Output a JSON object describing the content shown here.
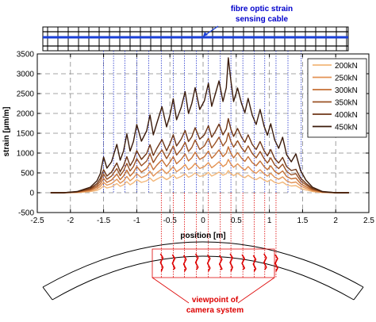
{
  "annotations": {
    "cable_label_line1": "fibre optic strain",
    "cable_label_line2": "sensing cable",
    "camera_label_line1": "viewpoint of",
    "camera_label_line2": "camera system"
  },
  "colors": {
    "cable": "#1a3fd6",
    "guide_blue": "#2233cc",
    "guide_red": "#dd0000",
    "crack": "#dd0000"
  },
  "chart_data": {
    "type": "line",
    "title": "",
    "xlabel": "position [m]",
    "ylabel": "strain [µm/m]",
    "xlim": [
      -2.5,
      2.5
    ],
    "ylim": [
      -500,
      3500
    ],
    "xticks": [
      -2.5,
      -2,
      -1.5,
      -1,
      -0.5,
      0,
      0.5,
      1,
      1.5,
      2,
      2.5
    ],
    "yticks": [
      -500,
      0,
      500,
      1000,
      1500,
      2000,
      2500,
      3000,
      3500
    ],
    "grid": true,
    "legend_position": "top-right",
    "x": [
      -2.3,
      -2.1,
      -1.9,
      -1.7,
      -1.6,
      -1.55,
      -1.5,
      -1.45,
      -1.38,
      -1.3,
      -1.25,
      -1.2,
      -1.15,
      -1.1,
      -1.05,
      -1.0,
      -0.93,
      -0.85,
      -0.8,
      -0.75,
      -0.7,
      -0.62,
      -0.55,
      -0.5,
      -0.45,
      -0.4,
      -0.33,
      -0.27,
      -0.22,
      -0.17,
      -0.12,
      -0.05,
      0.02,
      0.08,
      0.13,
      0.18,
      0.24,
      0.3,
      0.35,
      0.38,
      0.42,
      0.46,
      0.52,
      0.58,
      0.63,
      0.68,
      0.74,
      0.8,
      0.86,
      0.92,
      0.97,
      1.02,
      1.08,
      1.14,
      1.2,
      1.26,
      1.33,
      1.4,
      1.47,
      1.55,
      1.65,
      1.8,
      2.0,
      2.2
    ],
    "series": [
      {
        "name": "200kN",
        "color": "#f2b77a",
        "values": [
          0,
          0,
          5,
          30,
          60,
          100,
          170,
          120,
          150,
          230,
          160,
          200,
          280,
          200,
          250,
          330,
          260,
          300,
          370,
          290,
          340,
          410,
          330,
          380,
          450,
          360,
          410,
          480,
          390,
          430,
          500,
          410,
          440,
          510,
          420,
          460,
          520,
          440,
          480,
          560,
          480,
          430,
          490,
          420,
          380,
          440,
          370,
          330,
          390,
          320,
          280,
          330,
          260,
          230,
          270,
          200,
          170,
          180,
          110,
          70,
          30,
          5,
          0,
          0
        ]
      },
      {
        "name": "250kN",
        "color": "#e39355",
        "values": [
          0,
          0,
          10,
          50,
          100,
          160,
          260,
          190,
          230,
          340,
          240,
          300,
          410,
          300,
          370,
          480,
          380,
          440,
          540,
          420,
          500,
          600,
          480,
          560,
          660,
          530,
          610,
          710,
          580,
          640,
          740,
          610,
          660,
          760,
          630,
          690,
          780,
          660,
          720,
          840,
          720,
          640,
          730,
          630,
          570,
          660,
          550,
          490,
          580,
          480,
          420,
          490,
          390,
          340,
          400,
          300,
          250,
          270,
          170,
          110,
          50,
          10,
          0,
          0
        ]
      },
      {
        "name": "300kN",
        "color": "#c46f35",
        "values": [
          0,
          0,
          15,
          70,
          140,
          220,
          360,
          260,
          320,
          470,
          330,
          420,
          570,
          420,
          510,
          660,
          520,
          610,
          750,
          580,
          690,
          830,
          660,
          770,
          910,
          730,
          840,
          980,
          800,
          880,
          1020,
          840,
          910,
          1050,
          870,
          950,
          1080,
          910,
          1000,
          1160,
          990,
          880,
          1010,
          870,
          790,
          910,
          760,
          680,
          800,
          660,
          580,
          680,
          540,
          470,
          550,
          410,
          350,
          370,
          230,
          150,
          70,
          15,
          0,
          0
        ]
      },
      {
        "name": "350kN",
        "color": "#9a5124",
        "values": [
          0,
          0,
          20,
          90,
          180,
          290,
          470,
          340,
          420,
          610,
          430,
          550,
          740,
          550,
          660,
          860,
          680,
          800,
          980,
          760,
          900,
          1080,
          860,
          1000,
          1180,
          950,
          1090,
          1270,
          1040,
          1140,
          1330,
          1090,
          1180,
          1370,
          1130,
          1240,
          1400,
          1180,
          1300,
          1510,
          1290,
          1150,
          1310,
          1130,
          1030,
          1180,
          990,
          880,
          1040,
          860,
          750,
          880,
          700,
          610,
          720,
          540,
          450,
          480,
          300,
          200,
          90,
          20,
          0,
          0
        ]
      },
      {
        "name": "400kN",
        "color": "#6e3617",
        "values": [
          0,
          0,
          25,
          110,
          230,
          360,
          580,
          420,
          520,
          750,
          530,
          680,
          910,
          680,
          820,
          1060,
          840,
          990,
          1210,
          940,
          1110,
          1340,
          1060,
          1240,
          1460,
          1180,
          1350,
          1570,
          1290,
          1410,
          1640,
          1350,
          1460,
          1690,
          1400,
          1530,
          1730,
          1460,
          1610,
          1870,
          1600,
          1420,
          1620,
          1400,
          1270,
          1460,
          1220,
          1090,
          1290,
          1060,
          930,
          1090,
          860,
          750,
          890,
          660,
          560,
          590,
          370,
          240,
          110,
          25,
          0,
          0
        ]
      },
      {
        "name": "450kN",
        "color": "#3a1a0a",
        "values": [
          0,
          0,
          30,
          140,
          300,
          480,
          900,
          620,
          780,
          1220,
          820,
          1050,
          1480,
          1050,
          1290,
          1720,
          1300,
          1560,
          1960,
          1460,
          1740,
          2170,
          1660,
          1950,
          2370,
          1840,
          2150,
          2550,
          2000,
          2250,
          2650,
          2100,
          2320,
          2760,
          2180,
          2460,
          2820,
          2300,
          2650,
          3400,
          2820,
          2300,
          2640,
          2250,
          2020,
          2380,
          1960,
          1720,
          2100,
          1680,
          1450,
          1740,
          1330,
          1120,
          1400,
          960,
          780,
          980,
          560,
          320,
          140,
          30,
          0,
          0
        ]
      }
    ],
    "guide_blue_x": [
      -1.5,
      -1.35,
      -1.18,
      -1.0,
      -0.82,
      -0.63,
      -0.45,
      -0.28,
      -0.1,
      0.08,
      0.26,
      0.42,
      0.6,
      0.77,
      0.93,
      1.1,
      1.28,
      1.48
    ],
    "guide_red_x": [
      -0.63,
      -0.45,
      -0.28,
      -0.1,
      0.08,
      0.26,
      0.42,
      0.6,
      0.77,
      0.93,
      1.1
    ]
  }
}
